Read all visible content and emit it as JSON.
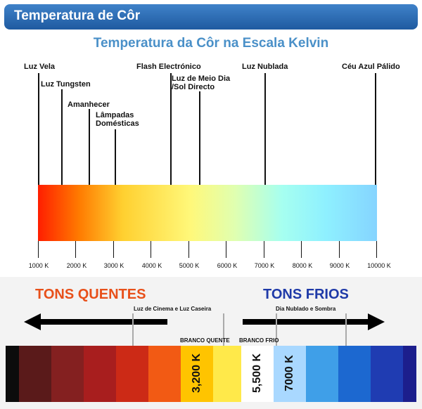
{
  "header": {
    "title": "Temperatura de Côr"
  },
  "diagram": {
    "title": "Temperatura da Côr na Escala Kelvin",
    "sources": [
      {
        "label": "Luz Vela"
      },
      {
        "label": "Luz Tungsten"
      },
      {
        "label": "Amanhecer"
      },
      {
        "label": "Lâmpadas Domésticas"
      },
      {
        "label": "Flash Electrónico"
      },
      {
        "label": "Luz de Meio Dia /Sol Directo"
      },
      {
        "label": "Luz Nublada"
      },
      {
        "label": "Céu Azul Pálido"
      }
    ],
    "ticks": [
      "1000 K",
      "2000 K",
      "3000 K",
      "4000 K",
      "5000 K",
      "6000 K",
      "7000 K",
      "8000 K",
      "9000 K",
      "10000 K"
    ]
  },
  "tones": {
    "warm_label": "TONS QUENTES",
    "cold_label": "TONS FRIOS",
    "warm_note": "Luz de Cinema e Luz Caseira",
    "cold_note": "Dia Nublado e Sombra",
    "warm_white_label": "BRANCO QUENTE",
    "cold_white_label": "BRANCO FRIO",
    "k3200": "3,200 K",
    "k5500": "5,500 K",
    "k7000": "7000 K",
    "warm_color": "#e8501a",
    "cold_color": "#1f3aa8"
  }
}
